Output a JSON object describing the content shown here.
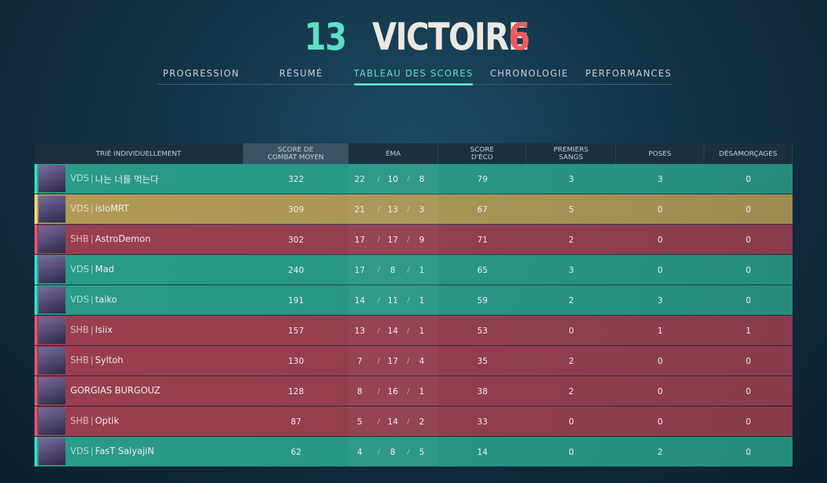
{
  "header": {
    "score_left": "13",
    "result": "VICTOIRE",
    "score_right": "6"
  },
  "tabs": {
    "items": [
      "PROGRESSION",
      "RÉSUMÉ",
      "TABLEAU DES SCORES",
      "CHRONOLOGIE",
      "PERFORMANCES"
    ],
    "active": 2
  },
  "table": {
    "columns": [
      "TRIÉ INDIVIDUELLEMENT",
      "SCORE DE COMBAT MOYEN",
      "ÉMA",
      "SCORE D'ÉCO",
      "PREMIERS SANGS",
      "POSES",
      "DÉSAMORÇAGES"
    ],
    "rows": [
      {
        "tag": "VDS",
        "name": "나는 너를 먹는다",
        "acs": 322,
        "kills": 22,
        "deaths": 10,
        "assists": 8,
        "eco": 79,
        "first_bloods": 3,
        "plants": 3,
        "defuses": 0,
        "color": "#2a9c88"
      },
      {
        "tag": "VDS",
        "name": "isloMRT",
        "acs": 309,
        "kills": 21,
        "deaths": 13,
        "assists": 3,
        "eco": 67,
        "first_bloods": 5,
        "plants": 0,
        "defuses": 0,
        "color": "#b39a55"
      },
      {
        "tag": "SHB",
        "name": "AstroDemon",
        "acs": 302,
        "kills": 17,
        "deaths": 17,
        "assists": 9,
        "eco": 71,
        "first_bloods": 2,
        "plants": 0,
        "defuses": 0,
        "color": "#9a3e4f"
      },
      {
        "tag": "VDS",
        "name": "Mad",
        "acs": 240,
        "kills": 17,
        "deaths": 8,
        "assists": 1,
        "eco": 65,
        "first_bloods": 3,
        "plants": 0,
        "defuses": 0,
        "color": "#2a9c88"
      },
      {
        "tag": "VDS",
        "name": "taiko",
        "acs": 191,
        "kills": 14,
        "deaths": 11,
        "assists": 1,
        "eco": 59,
        "first_bloods": 2,
        "plants": 3,
        "defuses": 0,
        "color": "#2a9c88"
      },
      {
        "tag": "SHB",
        "name": "Isiix",
        "acs": 157,
        "kills": 13,
        "deaths": 14,
        "assists": 1,
        "eco": 53,
        "first_bloods": 0,
        "plants": 1,
        "defuses": 1,
        "color": "#9a3e4f"
      },
      {
        "tag": "SHB",
        "name": "Syltoh",
        "acs": 130,
        "kills": 7,
        "deaths": 17,
        "assists": 4,
        "eco": 35,
        "first_bloods": 2,
        "plants": 0,
        "defuses": 0,
        "color": "#9a3e4f"
      },
      {
        "name": "GORGIAS BURGOUZ",
        "acs": 128,
        "kills": 8,
        "deaths": 16,
        "assists": 1,
        "eco": 38,
        "first_bloods": 2,
        "plants": 0,
        "defuses": 0,
        "color": "#9a3e4f"
      },
      {
        "tag": "SHB",
        "name": "Optik",
        "acs": 87,
        "kills": 5,
        "deaths": 14,
        "assists": 2,
        "eco": 33,
        "first_bloods": 0,
        "plants": 0,
        "defuses": 0,
        "color": "#9a3e4f"
      },
      {
        "tag": "VDS",
        "name": "FasT SaiyajiN",
        "acs": 62,
        "kills": 4,
        "deaths": 8,
        "assists": 5,
        "eco": 14,
        "first_bloods": 0,
        "plants": 2,
        "defuses": 0,
        "color": "#2a9c88"
      }
    ]
  }
}
